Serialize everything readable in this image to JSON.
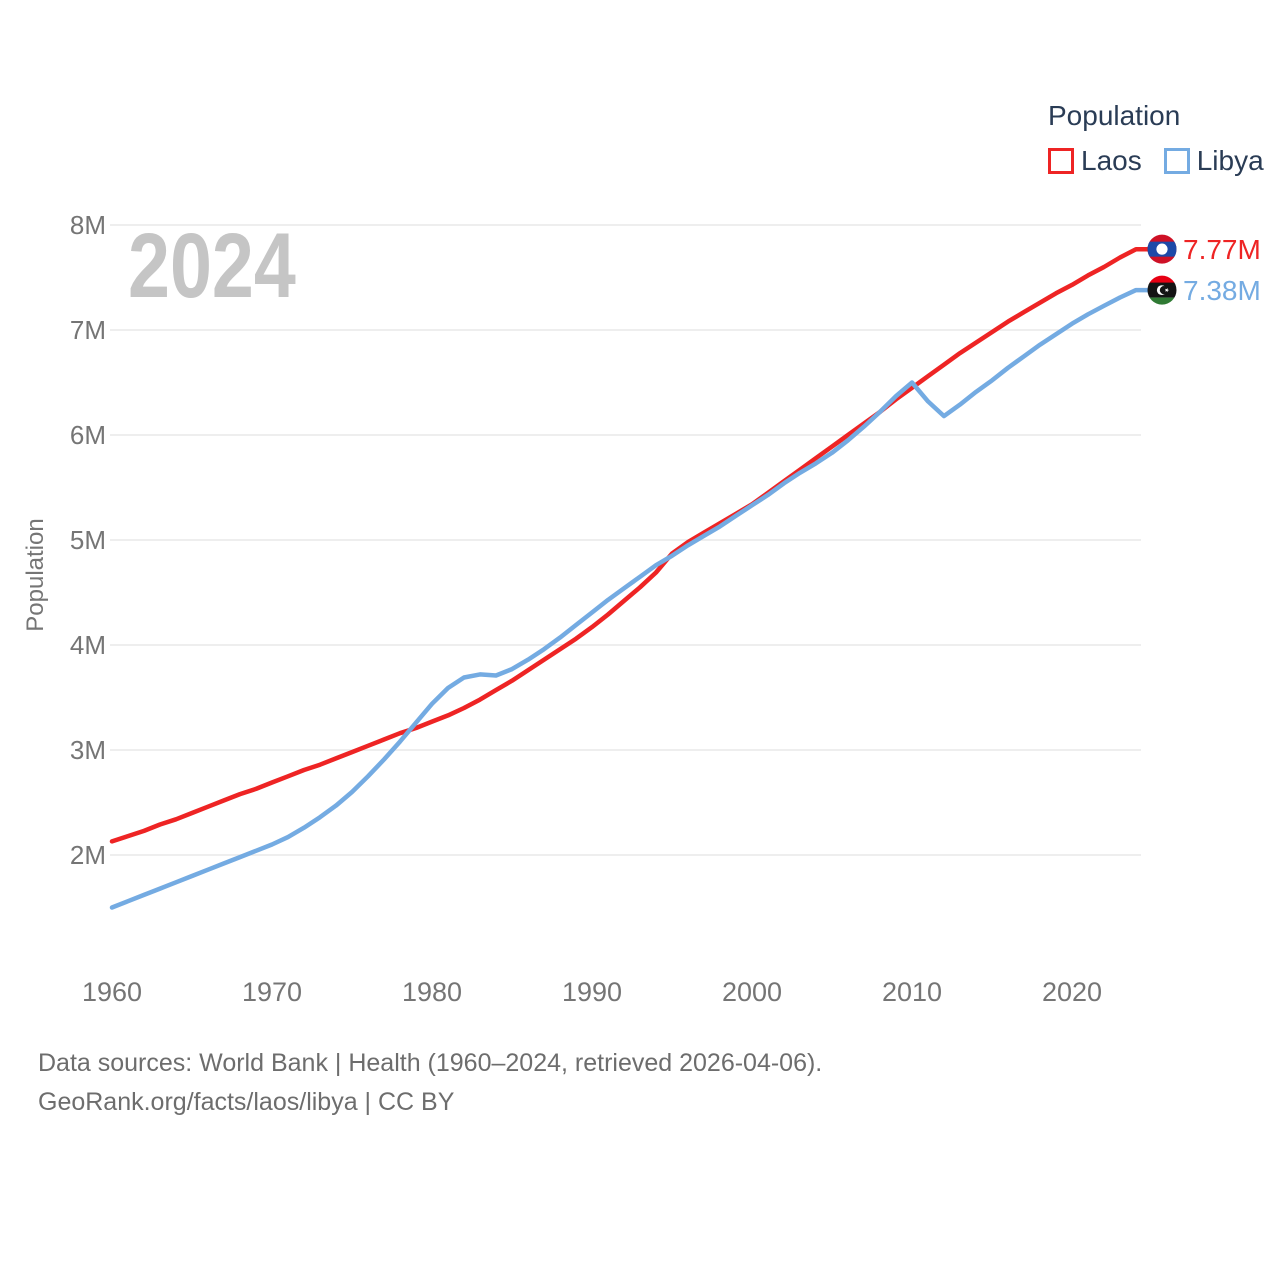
{
  "watermark": "2024",
  "legend": {
    "title": "Population",
    "items": [
      {
        "label": "Laos",
        "color": "#ee2424"
      },
      {
        "label": "Libya",
        "color": "#74abe2"
      }
    ]
  },
  "y_axis": {
    "title": "Population",
    "ticks": [
      {
        "label": "2M",
        "value": 2
      },
      {
        "label": "3M",
        "value": 3
      },
      {
        "label": "4M",
        "value": 4
      },
      {
        "label": "5M",
        "value": 5
      },
      {
        "label": "6M",
        "value": 6
      },
      {
        "label": "7M",
        "value": 7
      },
      {
        "label": "8M",
        "value": 8
      }
    ]
  },
  "x_axis": {
    "ticks": [
      {
        "label": "1960",
        "value": 1960
      },
      {
        "label": "1970",
        "value": 1970
      },
      {
        "label": "1980",
        "value": 1980
      },
      {
        "label": "1990",
        "value": 1990
      },
      {
        "label": "2000",
        "value": 2000
      },
      {
        "label": "2010",
        "value": 2010
      },
      {
        "label": "2020",
        "value": 2020
      }
    ]
  },
  "end_labels": [
    {
      "series": "Laos",
      "value_label": "7.77M",
      "color": "#ee2424",
      "flag_icon": "laos-flag-icon"
    },
    {
      "series": "Libya",
      "value_label": "7.38M",
      "color": "#74abe2",
      "flag_icon": "libya-flag-icon"
    }
  ],
  "footer": {
    "line1": "Data sources: World Bank | Health (1960–2024, retrieved 2026-04-06).",
    "line2": "GeoRank.org/facts/laos/libya | CC BY"
  },
  "chart_data": {
    "type": "line",
    "title": "Population",
    "xlabel": "",
    "ylabel": "Population",
    "y_unit": "millions of people",
    "x_range": [
      1960,
      2024
    ],
    "ylim": [
      1.3,
      8.3
    ],
    "grid": "horizontal",
    "legend_position": "top-right",
    "x": [
      1960,
      1961,
      1962,
      1963,
      1964,
      1965,
      1966,
      1967,
      1968,
      1969,
      1970,
      1971,
      1972,
      1973,
      1974,
      1975,
      1976,
      1977,
      1978,
      1979,
      1980,
      1981,
      1982,
      1983,
      1984,
      1985,
      1986,
      1987,
      1988,
      1989,
      1990,
      1991,
      1992,
      1993,
      1994,
      1995,
      1996,
      1997,
      1998,
      1999,
      2000,
      2001,
      2002,
      2003,
      2004,
      2005,
      2006,
      2007,
      2008,
      2009,
      2010,
      2011,
      2012,
      2013,
      2014,
      2015,
      2016,
      2017,
      2018,
      2019,
      2020,
      2021,
      2022,
      2023,
      2024
    ],
    "series": [
      {
        "name": "Laos",
        "color": "#ee2424",
        "final_label": "7.77M",
        "values": [
          2.13,
          2.18,
          2.23,
          2.29,
          2.34,
          2.4,
          2.46,
          2.52,
          2.58,
          2.63,
          2.69,
          2.75,
          2.81,
          2.86,
          2.92,
          2.98,
          3.04,
          3.1,
          3.16,
          3.21,
          3.27,
          3.33,
          3.4,
          3.48,
          3.57,
          3.66,
          3.76,
          3.86,
          3.96,
          4.06,
          4.17,
          4.29,
          4.42,
          4.55,
          4.69,
          4.87,
          4.98,
          5.07,
          5.16,
          5.25,
          5.34,
          5.45,
          5.56,
          5.67,
          5.78,
          5.89,
          6.0,
          6.11,
          6.22,
          6.34,
          6.45,
          6.56,
          6.67,
          6.78,
          6.88,
          6.98,
          7.08,
          7.17,
          7.26,
          7.35,
          7.43,
          7.52,
          7.6,
          7.69,
          7.77
        ]
      },
      {
        "name": "Libya",
        "color": "#74abe2",
        "final_label": "7.38M",
        "values": [
          1.5,
          1.56,
          1.62,
          1.68,
          1.74,
          1.8,
          1.86,
          1.92,
          1.98,
          2.04,
          2.1,
          2.17,
          2.26,
          2.36,
          2.47,
          2.6,
          2.75,
          2.91,
          3.08,
          3.26,
          3.44,
          3.59,
          3.69,
          3.72,
          3.71,
          3.77,
          3.86,
          3.96,
          4.07,
          4.19,
          4.31,
          4.43,
          4.54,
          4.65,
          4.76,
          4.85,
          4.95,
          5.04,
          5.13,
          5.23,
          5.33,
          5.43,
          5.54,
          5.64,
          5.73,
          5.83,
          5.95,
          6.08,
          6.22,
          6.37,
          6.5,
          6.32,
          6.18,
          6.29,
          6.41,
          6.52,
          6.64,
          6.75,
          6.86,
          6.96,
          7.06,
          7.15,
          7.23,
          7.31,
          7.38
        ]
      }
    ]
  }
}
